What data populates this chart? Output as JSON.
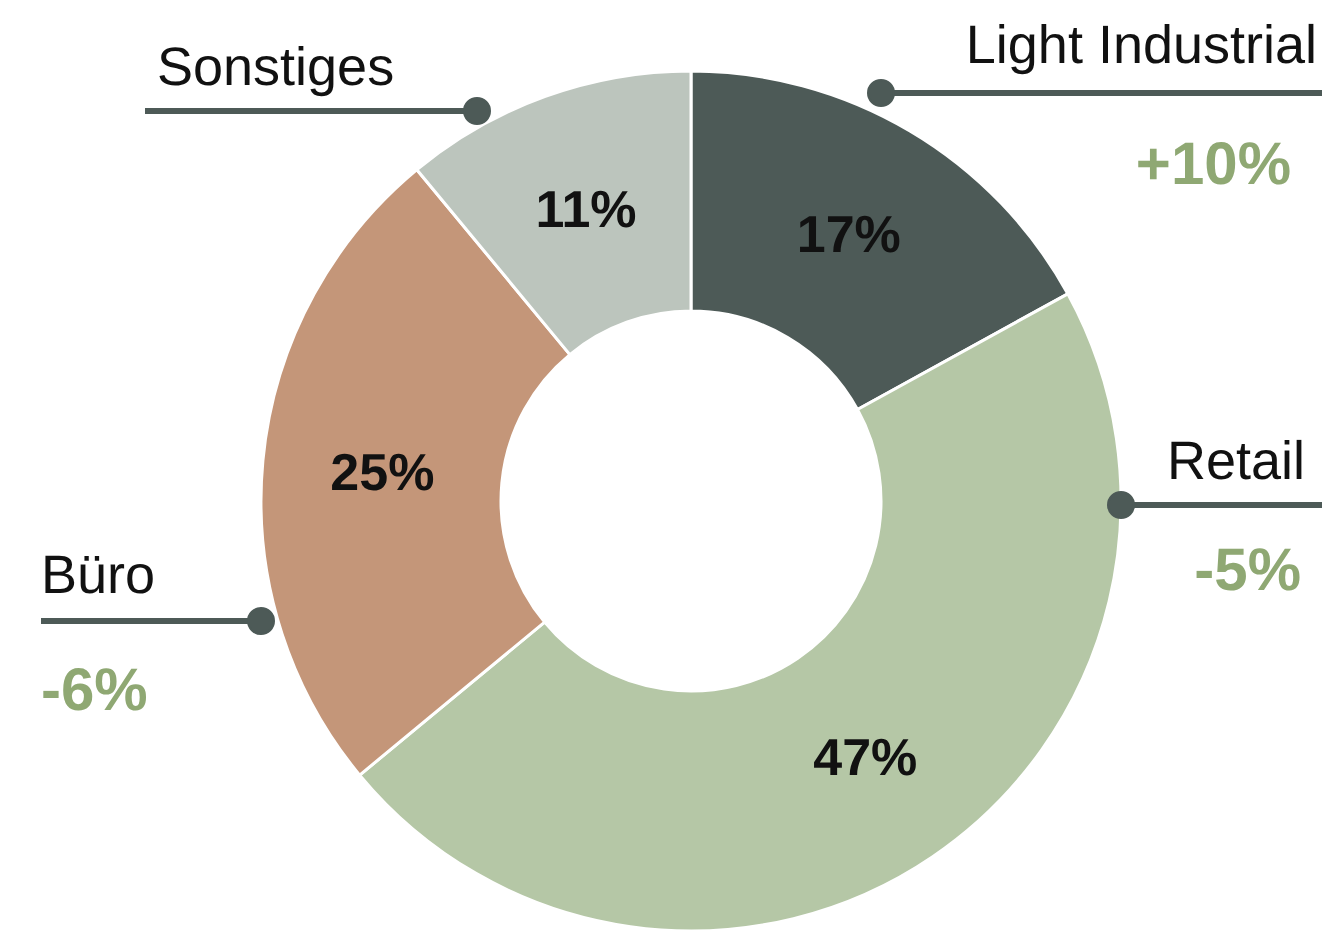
{
  "chart_data": {
    "type": "donut",
    "categories": [
      "Light Industrial",
      "Retail",
      "Büro",
      "Sonstiges"
    ],
    "values": [
      17,
      47,
      25,
      11
    ],
    "colors": [
      "#4d5a57",
      "#b5c7a6",
      "#c49679",
      "#bcc5bd"
    ],
    "value_labels": [
      "17%",
      "47%",
      "25%",
      "11%"
    ],
    "annotations": [
      "+10%",
      "-5%",
      "-6%"
    ]
  }
}
